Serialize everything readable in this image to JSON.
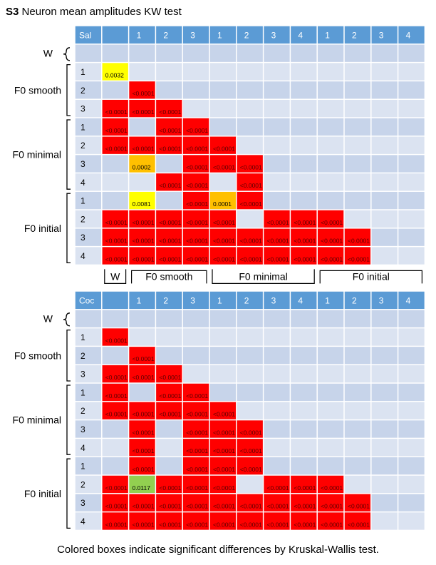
{
  "title": {
    "prefix": "S3",
    "text": "Neuron mean amplitudes KW test"
  },
  "caption": "Colored boxes indicate significant differences by Kruskal-Wallis test.",
  "colors": {
    "header": "#5b9bd5",
    "row_light": "#dbe3f1",
    "row_dark": "#c7d4ea",
    "sig": "#ff0000",
    "p_yellow": "#ffff00",
    "p_orange": "#ffc000",
    "p_green": "#92d050"
  },
  "chart_data": [
    {
      "type": "table",
      "corner_label": "Sal",
      "column_headers": [
        "",
        "1",
        "2",
        "3",
        "1",
        "2",
        "3",
        "4",
        "1",
        "2",
        "3",
        "4"
      ],
      "row_group_labels": [
        "W",
        "F0 smooth",
        "F0 minimal",
        "F0 initial"
      ],
      "row_labels": [
        "",
        "1",
        "2",
        "3",
        "1",
        "2",
        "3",
        "4",
        "1",
        "2",
        "3",
        "4"
      ],
      "bottom_group_labels": [
        "W",
        "F0 smooth",
        "F0 minimal",
        "F0 initial"
      ],
      "cells": [
        [],
        [
          [
            0,
            "0.0032",
            "yellow"
          ]
        ],
        [
          [
            1,
            "<0.0001",
            "red"
          ]
        ],
        [
          [
            0,
            "<0.0001",
            "red"
          ],
          [
            1,
            "<0.0001",
            "red"
          ],
          [
            2,
            "<0.0001",
            "red"
          ]
        ],
        [
          [
            0,
            "<0.0001",
            "red"
          ],
          [
            2,
            "<0.0001",
            "red"
          ],
          [
            3,
            "<0.0001",
            "red"
          ]
        ],
        [
          [
            0,
            "<0.0001",
            "red"
          ],
          [
            1,
            "<0.0001",
            "red"
          ],
          [
            2,
            "<0.0001",
            "red"
          ],
          [
            3,
            "<0.0001",
            "red"
          ],
          [
            4,
            "<0.0001",
            "red"
          ]
        ],
        [
          [
            1,
            "0.0002",
            "orange"
          ],
          [
            3,
            "<0.0001",
            "red"
          ],
          [
            4,
            "<0.0001",
            "red"
          ],
          [
            5,
            "<0.0001",
            "red"
          ]
        ],
        [
          [
            2,
            "<0.0001",
            "red"
          ],
          [
            3,
            "<0.0001",
            "red"
          ],
          [
            5,
            "<0.0001",
            "red"
          ]
        ],
        [
          [
            1,
            "0.0081",
            "yellow"
          ],
          [
            3,
            "<0.0001",
            "red"
          ],
          [
            4,
            "0.0001",
            "orange"
          ],
          [
            5,
            "<0.0001",
            "red"
          ]
        ],
        [
          [
            0,
            "<0.0001",
            "red"
          ],
          [
            1,
            "<0.0001",
            "red"
          ],
          [
            2,
            "<0.0001",
            "red"
          ],
          [
            3,
            "<0.0001",
            "red"
          ],
          [
            4,
            "<0.0001",
            "red"
          ],
          [
            6,
            "<0.0001",
            "red"
          ],
          [
            7,
            "<0.0001",
            "red"
          ],
          [
            8,
            "<0.0001",
            "red"
          ]
        ],
        [
          [
            0,
            "<0.0001",
            "red"
          ],
          [
            1,
            "<0.0001",
            "red"
          ],
          [
            2,
            "<0.0001",
            "red"
          ],
          [
            3,
            "<0.0001",
            "red"
          ],
          [
            4,
            "<0.0001",
            "red"
          ],
          [
            5,
            "<0.0001",
            "red"
          ],
          [
            6,
            "<0.0001",
            "red"
          ],
          [
            7,
            "<0.0001",
            "red"
          ],
          [
            8,
            "<0.0001",
            "red"
          ],
          [
            9,
            "<0.0001",
            "red"
          ]
        ],
        [
          [
            0,
            "<0.0001",
            "red"
          ],
          [
            1,
            "<0.0001",
            "red"
          ],
          [
            2,
            "<0.0001",
            "red"
          ],
          [
            3,
            "<0.0001",
            "red"
          ],
          [
            4,
            "<0.0001",
            "red"
          ],
          [
            5,
            "<0.0001",
            "red"
          ],
          [
            6,
            "<0.0001",
            "red"
          ],
          [
            7,
            "<0.0001",
            "red"
          ],
          [
            8,
            "<0.0001",
            "red"
          ],
          [
            9,
            "<0.0001",
            "red"
          ]
        ]
      ]
    },
    {
      "type": "table",
      "corner_label": "Coc",
      "column_headers": [
        "",
        "1",
        "2",
        "3",
        "1",
        "2",
        "3",
        "4",
        "1",
        "2",
        "3",
        "4"
      ],
      "row_group_labels": [
        "W",
        "F0 smooth",
        "F0 minimal",
        "F0 initial"
      ],
      "row_labels": [
        "",
        "1",
        "2",
        "3",
        "1",
        "2",
        "3",
        "4",
        "1",
        "2",
        "3",
        "4"
      ],
      "cells": [
        [],
        [
          [
            0,
            "<0.0001",
            "red"
          ]
        ],
        [
          [
            1,
            "<0.0001",
            "red"
          ]
        ],
        [
          [
            0,
            "<0.0001",
            "red"
          ],
          [
            1,
            "<0.0001",
            "red"
          ],
          [
            2,
            "<0.0001",
            "red"
          ]
        ],
        [
          [
            0,
            "<0.0001",
            "red"
          ],
          [
            2,
            "<0.0001",
            "red"
          ],
          [
            3,
            "<0.0001",
            "red"
          ]
        ],
        [
          [
            0,
            "<0.0001",
            "red"
          ],
          [
            1,
            "<0.0001",
            "red"
          ],
          [
            2,
            "<0.0001",
            "red"
          ],
          [
            3,
            "<0.0001",
            "red"
          ],
          [
            4,
            "<0.0001",
            "red"
          ]
        ],
        [
          [
            1,
            "<0.0001",
            "red"
          ],
          [
            3,
            "<0.0001",
            "red"
          ],
          [
            4,
            "<0.0001",
            "red"
          ],
          [
            5,
            "<0.0001",
            "red"
          ]
        ],
        [
          [
            1,
            "<0.0001",
            "red"
          ],
          [
            3,
            "<0.0001",
            "red"
          ],
          [
            4,
            "<0.0001",
            "red"
          ],
          [
            5,
            "<0.0001",
            "red"
          ]
        ],
        [
          [
            1,
            "<0.0001",
            "red"
          ],
          [
            3,
            "<0.0001",
            "red"
          ],
          [
            4,
            "<0.0001",
            "red"
          ],
          [
            5,
            "<0.0001",
            "red"
          ]
        ],
        [
          [
            0,
            "<0.0001",
            "red"
          ],
          [
            1,
            "0.0117",
            "green"
          ],
          [
            2,
            "<0.0001",
            "red"
          ],
          [
            3,
            "<0.0001",
            "red"
          ],
          [
            4,
            "<0.0001",
            "red"
          ],
          [
            6,
            "<0.0001",
            "red"
          ],
          [
            7,
            "<0.0001",
            "red"
          ],
          [
            8,
            "<0.0001",
            "red"
          ]
        ],
        [
          [
            0,
            "<0.0001",
            "red"
          ],
          [
            1,
            "<0.0001",
            "red"
          ],
          [
            2,
            "<0.0001",
            "red"
          ],
          [
            3,
            "<0.0001",
            "red"
          ],
          [
            4,
            "<0.0001",
            "red"
          ],
          [
            5,
            "<0.0001",
            "red"
          ],
          [
            6,
            "<0.0001",
            "red"
          ],
          [
            7,
            "<0.0001",
            "red"
          ],
          [
            8,
            "<0.0001",
            "red"
          ],
          [
            9,
            "<0.0001",
            "red"
          ]
        ],
        [
          [
            0,
            "<0.0001",
            "red"
          ],
          [
            1,
            "<0.0001",
            "red"
          ],
          [
            2,
            "<0.0001",
            "red"
          ],
          [
            3,
            "<0.0001",
            "red"
          ],
          [
            4,
            "<0.0001",
            "red"
          ],
          [
            5,
            "<0.0001",
            "red"
          ],
          [
            6,
            "<0.0001",
            "red"
          ],
          [
            7,
            "<0.0001",
            "red"
          ],
          [
            8,
            "<0.0001",
            "red"
          ],
          [
            9,
            "<0.0001",
            "red"
          ]
        ]
      ]
    }
  ]
}
